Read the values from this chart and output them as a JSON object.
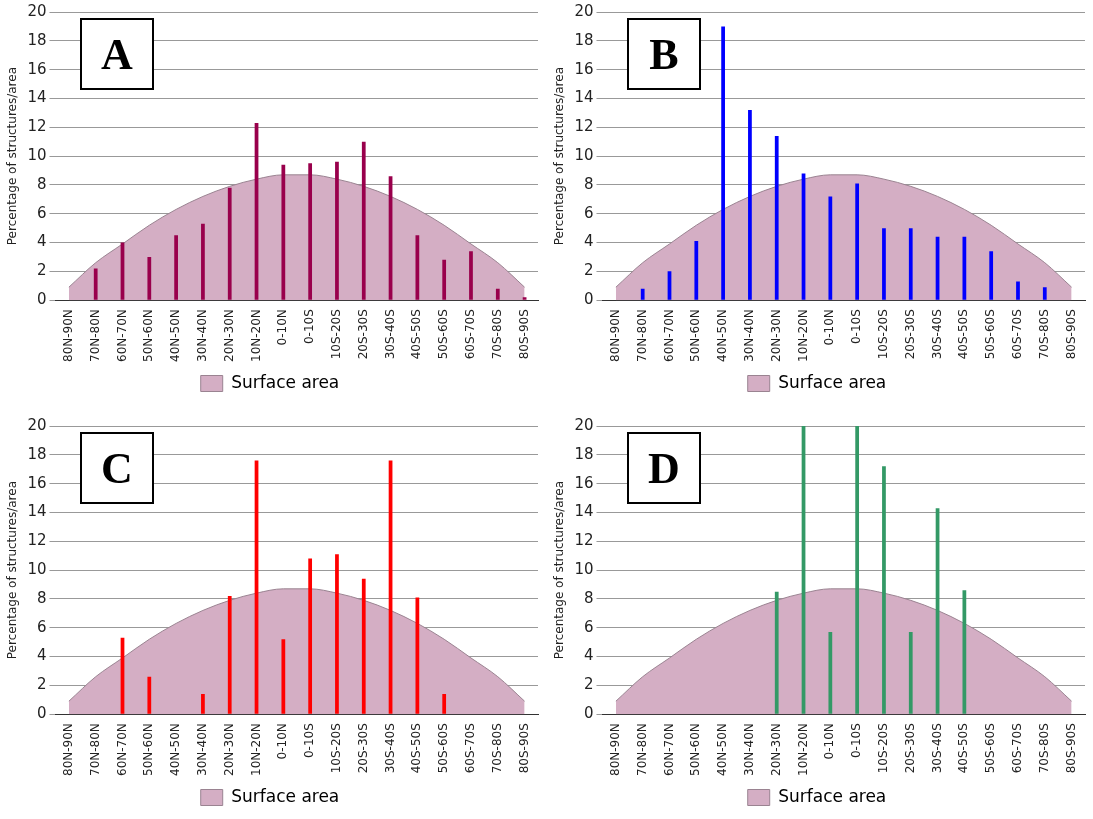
{
  "chart_data": [
    {
      "type": "bar",
      "title": "A",
      "ylabel": "Percentage of structures/area",
      "categories": [
        "80N-90N",
        "70N-80N",
        "60N-70N",
        "50N-60N",
        "40N-50N",
        "30N-40N",
        "20N-30N",
        "10N-20N",
        "0-10N",
        "0-10S",
        "10S-20S",
        "20S-30S",
        "30S-40S",
        "40S-50S",
        "50S-60S",
        "60S-70S",
        "70S-80S",
        "80S-90S"
      ],
      "ylim": [
        0,
        20
      ],
      "yticks": [
        0,
        2,
        4,
        6,
        8,
        10,
        12,
        14,
        16,
        18,
        20
      ],
      "grid": "y",
      "legend": "bottom",
      "series": [
        {
          "type": "area",
          "name": "Surface area",
          "color": "#d4aec4",
          "values": [
            0.9,
            2.6,
            3.9,
            5.2,
            6.3,
            7.2,
            7.9,
            8.4,
            8.7,
            8.7,
            8.4,
            7.9,
            7.2,
            6.3,
            5.2,
            3.9,
            2.6,
            0.9
          ]
        },
        {
          "color": "#99004c",
          "values": [
            null,
            2.2,
            4.0,
            3.0,
            4.5,
            5.3,
            7.8,
            12.3,
            9.4,
            9.5,
            9.6,
            11.0,
            8.6,
            4.5,
            2.8,
            3.4,
            0.8,
            0.2
          ]
        }
      ]
    },
    {
      "type": "bar",
      "title": "B",
      "ylabel": "Percentage of structures/area",
      "categories": [
        "80N-90N",
        "70N-80N",
        "60N-70N",
        "50N-60N",
        "40N-50N",
        "30N-40N",
        "20N-30N",
        "10N-20N",
        "0-10N",
        "0-10S",
        "10S-20S",
        "20S-30S",
        "30S-40S",
        "40S-50S",
        "50S-60S",
        "60S-70S",
        "70S-80S",
        "80S-90S"
      ],
      "ylim": [
        0,
        20
      ],
      "yticks": [
        0,
        2,
        4,
        6,
        8,
        10,
        12,
        14,
        16,
        18,
        20
      ],
      "grid": "y",
      "legend": "bottom",
      "series": [
        {
          "type": "area",
          "name": "Surface area",
          "color": "#d4aec4",
          "values": [
            0.9,
            2.6,
            3.9,
            5.2,
            6.3,
            7.2,
            7.9,
            8.4,
            8.7,
            8.7,
            8.4,
            7.9,
            7.2,
            6.3,
            5.2,
            3.9,
            2.6,
            0.9
          ]
        },
        {
          "color": "#0000ff",
          "values": [
            null,
            0.8,
            2.0,
            4.1,
            19.0,
            13.2,
            11.4,
            8.8,
            7.2,
            8.1,
            5.0,
            5.0,
            4.4,
            4.4,
            3.4,
            1.3,
            0.9,
            null
          ]
        }
      ]
    },
    {
      "type": "bar",
      "title": "C",
      "ylabel": "Percentage of structures/area",
      "categories": [
        "80N-90N",
        "70N-80N",
        "60N-70N",
        "50N-60N",
        "40N-50N",
        "30N-40N",
        "20N-30N",
        "10N-20N",
        "0-10N",
        "0-10S",
        "10S-20S",
        "20S-30S",
        "30S-40S",
        "40S-50S",
        "50S-60S",
        "60S-70S",
        "70S-80S",
        "80S-90S"
      ],
      "ylim": [
        0,
        20
      ],
      "yticks": [
        0,
        2,
        4,
        6,
        8,
        10,
        12,
        14,
        16,
        18,
        20
      ],
      "grid": "y",
      "legend": "bottom",
      "series": [
        {
          "type": "area",
          "name": "Surface area",
          "color": "#d4aec4",
          "values": [
            0.9,
            2.6,
            3.9,
            5.2,
            6.3,
            7.2,
            7.9,
            8.4,
            8.7,
            8.7,
            8.4,
            7.9,
            7.2,
            6.3,
            5.2,
            3.9,
            2.6,
            0.9
          ]
        },
        {
          "color": "#ff0000",
          "values": [
            null,
            null,
            5.3,
            2.6,
            null,
            1.4,
            8.2,
            17.6,
            5.2,
            10.8,
            11.1,
            9.4,
            17.6,
            8.1,
            1.4,
            null,
            null,
            null
          ]
        }
      ]
    },
    {
      "type": "bar",
      "title": "D",
      "ylabel": "Percentage of structures/area",
      "categories": [
        "80N-90N",
        "70N-80N",
        "60N-70N",
        "50N-60N",
        "40N-50N",
        "30N-40N",
        "20N-30N",
        "10N-20N",
        "0-10N",
        "0-10S",
        "10S-20S",
        "20S-30S",
        "30S-40S",
        "40S-50S",
        "50S-60S",
        "60S-70S",
        "70S-80S",
        "80S-90S"
      ],
      "ylim": [
        0,
        20
      ],
      "yticks": [
        0,
        2,
        4,
        6,
        8,
        10,
        12,
        14,
        16,
        18,
        20
      ],
      "grid": "y",
      "legend": "bottom",
      "series": [
        {
          "type": "area",
          "name": "Surface area",
          "color": "#d4aec4",
          "values": [
            0.9,
            2.6,
            3.9,
            5.2,
            6.3,
            7.2,
            7.9,
            8.4,
            8.7,
            8.7,
            8.4,
            7.9,
            7.2,
            6.3,
            5.2,
            3.9,
            2.6,
            0.9
          ]
        },
        {
          "color": "#339966",
          "values": [
            null,
            null,
            null,
            null,
            null,
            null,
            8.5,
            20,
            5.7,
            20,
            17.2,
            5.7,
            14.3,
            8.6,
            null,
            null,
            null,
            null
          ]
        }
      ]
    }
  ]
}
